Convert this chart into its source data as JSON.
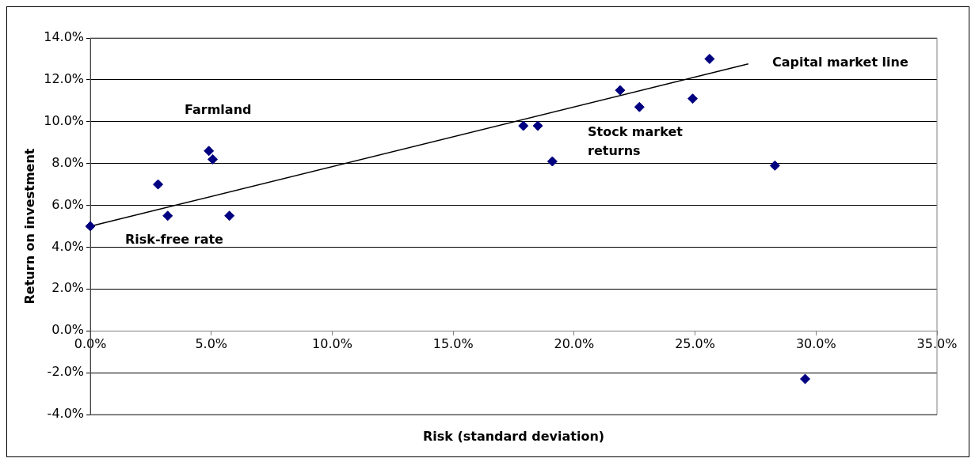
{
  "chart_data": {
    "type": "scatter",
    "xlabel": "Risk (standard deviation)",
    "ylabel": "Return on investment",
    "xlim": [
      0,
      35
    ],
    "xticks": [
      {
        "value": 0,
        "label": "0.0%"
      },
      {
        "value": 5,
        "label": "5.0%"
      },
      {
        "value": 10,
        "label": "10.0%"
      },
      {
        "value": 15,
        "label": "15.0%"
      },
      {
        "value": 20,
        "label": "20.0%"
      },
      {
        "value": 25,
        "label": "25.0%"
      },
      {
        "value": 30,
        "label": "30.0%"
      },
      {
        "value": 35,
        "label": "35.0%"
      }
    ],
    "ylim": [
      -4,
      14
    ],
    "yticks": [
      {
        "value": -4,
        "label": "-4.0%"
      },
      {
        "value": -2,
        "label": "-2.0%"
      },
      {
        "value": 0,
        "label": "0.0%"
      },
      {
        "value": 2,
        "label": "2.0%"
      },
      {
        "value": 4,
        "label": "4.0%"
      },
      {
        "value": 6,
        "label": "6.0%"
      },
      {
        "value": 8,
        "label": "8.0%"
      },
      {
        "value": 10,
        "label": "10.0%"
      },
      {
        "value": 12,
        "label": "12.0%"
      },
      {
        "value": 14,
        "label": "14.0%"
      }
    ],
    "grid": "y",
    "legend": false,
    "marker": "diamond",
    "series": [
      {
        "type": "scatter",
        "color": "#000080",
        "x": [
          0,
          2.8,
          3.2,
          4.9,
          5.06,
          5.75,
          17.9,
          18.5,
          19.1,
          21.9,
          22.7,
          24.9,
          25.6,
          28.3,
          29.55
        ],
        "values": [
          5.0,
          7.0,
          5.5,
          8.6,
          8.2,
          5.5,
          9.8,
          9.8,
          8.1,
          11.5,
          10.7,
          11.1,
          13.0,
          7.9,
          -2.3
        ]
      },
      {
        "type": "line",
        "color": "#000000",
        "marker": "none",
        "x": [
          0,
          27.2
        ],
        "values": [
          5.0,
          12.76
        ]
      }
    ],
    "annotations": [
      "Farmland",
      "Risk-free rate",
      "Stock market returns",
      "Capital market line"
    ]
  }
}
